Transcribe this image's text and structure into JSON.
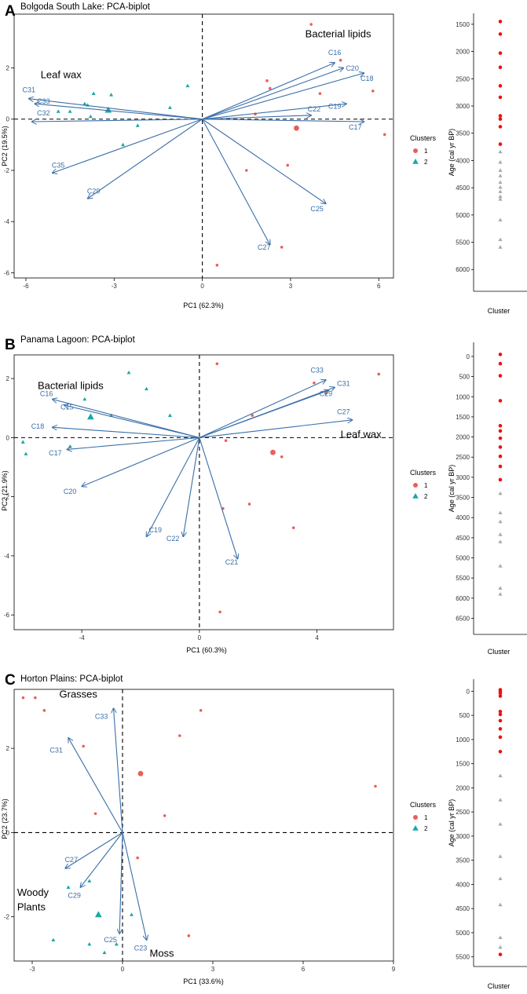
{
  "colors": {
    "arrow": "#3a6fa8",
    "cluster1": "#e8605a",
    "cluster2": "#1aa8a3",
    "age_cluster1": "#ee1111",
    "age_cluster2": "#aaaaaa",
    "axis": "#000000"
  },
  "chart_data": [
    {
      "type": "scatter",
      "panel_letter": "A",
      "title": "Bolgoda South Lake: PCA-biplot",
      "xlabel": "PC1 (62.3%)",
      "ylabel": "PC2 (19.5%)",
      "xlim": [
        -6.4,
        6.5
      ],
      "ylim": [
        -6.2,
        4.1
      ],
      "xticks": [
        -6,
        -3,
        0,
        3,
        6
      ],
      "xtick_labels": [
        "-6",
        "-3",
        "0",
        "3",
        "6"
      ],
      "yticks": [
        -6,
        -4,
        -2,
        0,
        2
      ],
      "ytick_labels": [
        "-6",
        "-4",
        "-2",
        "0",
        "2"
      ],
      "legend_title": "Clusters",
      "legend_entries": [
        "1",
        "2"
      ],
      "annotations": [
        {
          "text": "Leaf wax",
          "x": -5.5,
          "y": 1.6
        },
        {
          "text": "Bacterial lipids",
          "x": 3.5,
          "y": 3.2
        }
      ],
      "loadings": [
        {
          "label": "C16",
          "x": 4.5,
          "y": 2.2,
          "lx": 4.5,
          "ly": 2.5
        },
        {
          "label": "C20",
          "x": 4.8,
          "y": 2.0,
          "lx": 5.1,
          "ly": 1.9
        },
        {
          "label": "C18",
          "x": 5.5,
          "y": 1.8,
          "lx": 5.6,
          "ly": 1.5
        },
        {
          "label": "C19",
          "x": 4.9,
          "y": 0.6,
          "lx": 4.5,
          "ly": 0.4
        },
        {
          "label": "C22",
          "x": 3.7,
          "y": 0.15,
          "lx": 3.8,
          "ly": 0.3
        },
        {
          "label": "C17",
          "x": 5.5,
          "y": -0.1,
          "lx": 5.2,
          "ly": -0.4
        },
        {
          "label": "C25",
          "x": 4.2,
          "y": -3.3,
          "lx": 3.9,
          "ly": -3.6
        },
        {
          "label": "C27",
          "x": 2.3,
          "y": -4.9,
          "lx": 2.1,
          "ly": -5.1
        },
        {
          "label": "C29",
          "x": -3.9,
          "y": -3.1,
          "lx": -3.7,
          "ly": -2.9
        },
        {
          "label": "C35",
          "x": -5.1,
          "y": -2.1,
          "lx": -4.9,
          "ly": -1.9
        },
        {
          "label": "C31",
          "x": -5.9,
          "y": 0.8,
          "lx": -5.9,
          "ly": 1.05
        },
        {
          "label": "C33",
          "x": -5.7,
          "y": 0.6,
          "lx": -5.4,
          "ly": 0.6
        },
        {
          "label": "C32",
          "x": -5.8,
          "y": -0.1,
          "lx": -5.4,
          "ly": 0.15
        }
      ],
      "points": [
        {
          "x": 3.7,
          "y": 3.7,
          "cluster": 1
        },
        {
          "x": 4.7,
          "y": 2.3,
          "cluster": 1
        },
        {
          "x": 2.2,
          "y": 1.5,
          "cluster": 1
        },
        {
          "x": 2.3,
          "y": 1.2,
          "cluster": 1
        },
        {
          "x": 4.0,
          "y": 1.0,
          "cluster": 1
        },
        {
          "x": 5.8,
          "y": 1.1,
          "cluster": 1
        },
        {
          "x": 1.8,
          "y": 0.2,
          "cluster": 1
        },
        {
          "x": 6.2,
          "y": -0.6,
          "cluster": 1
        },
        {
          "x": 1.5,
          "y": -2.0,
          "cluster": 1
        },
        {
          "x": 2.9,
          "y": -1.8,
          "cluster": 1
        },
        {
          "x": 2.7,
          "y": -5.0,
          "cluster": 1
        },
        {
          "x": 0.5,
          "y": -5.7,
          "cluster": 1
        },
        {
          "x": -0.5,
          "y": 1.3,
          "cluster": 2
        },
        {
          "x": -1.1,
          "y": 0.45,
          "cluster": 2
        },
        {
          "x": -3.7,
          "y": 1.0,
          "cluster": 2
        },
        {
          "x": -3.1,
          "y": 0.95,
          "cluster": 2
        },
        {
          "x": -4.0,
          "y": 0.6,
          "cluster": 2
        },
        {
          "x": -4.5,
          "y": 0.3,
          "cluster": 2
        },
        {
          "x": -4.9,
          "y": 0.3,
          "cluster": 2
        },
        {
          "x": -3.8,
          "y": 0.1,
          "cluster": 2
        },
        {
          "x": -2.2,
          "y": -0.25,
          "cluster": 2
        },
        {
          "x": -2.7,
          "y": -1.0,
          "cluster": 2
        },
        {
          "x": -3.9,
          "y": 0.55,
          "cluster": 2
        }
      ],
      "centroids": [
        {
          "x": 3.2,
          "y": -0.35,
          "cluster": 1
        },
        {
          "x": -3.2,
          "y": 0.35,
          "cluster": 2
        }
      ],
      "age_axis": {
        "ylabel": "Age (cal yr BP)",
        "xlabel": "Cluster",
        "ylim": [
          1300,
          6400
        ],
        "ticks": [
          1500,
          2000,
          2500,
          3000,
          3500,
          4000,
          4500,
          5000,
          5500,
          6000
        ],
        "tick_labels": [
          "1500",
          "2000",
          "2500",
          "3000",
          "3500",
          "4000",
          "4500",
          "5000",
          "5500",
          "6000"
        ],
        "cluster1_ages": [
          1450,
          1680,
          2030,
          2290,
          2630,
          2840,
          3180,
          3240,
          3380,
          3700
        ],
        "cluster2_ages": [
          3840,
          4030,
          4180,
          4280,
          4400,
          4490,
          4570,
          4660,
          4710,
          5090,
          5450,
          5590
        ]
      }
    },
    {
      "type": "scatter",
      "panel_letter": "B",
      "title": "Panama Lagoon: PCA-biplot",
      "xlabel": "PC1 (60.3%)",
      "ylabel": "PC2 (21.9%)",
      "xlim": [
        -6.3,
        6.6
      ],
      "ylim": [
        -6.5,
        2.8
      ],
      "xticks": [
        -4,
        0,
        4
      ],
      "xtick_labels": [
        "-4",
        "0",
        "4"
      ],
      "yticks": [
        -6,
        -4,
        -2,
        0,
        2
      ],
      "ytick_labels": [
        "-6",
        "-4",
        "-2",
        "0",
        "2"
      ],
      "legend_title": "Clusters",
      "legend_entries": [
        "1",
        "2"
      ],
      "annotations": [
        {
          "text": "Bacterial lipids",
          "x": -5.5,
          "y": 1.65
        },
        {
          "text": "Leaf wax",
          "x": 4.8,
          "y": 0.0
        }
      ],
      "loadings": [
        {
          "label": "C33",
          "x": 4.3,
          "y": 1.95,
          "lx": 4.0,
          "ly": 2.2
        },
        {
          "label": "C31",
          "x": 4.6,
          "y": 1.7,
          "lx": 4.9,
          "ly": 1.75
        },
        {
          "label": "C29",
          "x": 4.4,
          "y": 1.6,
          "lx": 4.3,
          "ly": 1.4
        },
        {
          "label": "C27",
          "x": 5.2,
          "y": 0.6,
          "lx": 4.9,
          "ly": 0.8
        },
        {
          "label": "C16",
          "x": -5.0,
          "y": 1.3,
          "lx": -5.2,
          "ly": 1.4
        },
        {
          "label": "C15",
          "x": -4.6,
          "y": 1.1,
          "lx": -4.5,
          "ly": 0.95
        },
        {
          "label": "C18",
          "x": -5.0,
          "y": 0.35,
          "lx": -5.5,
          "ly": 0.3
        },
        {
          "label": "C17",
          "x": -4.5,
          "y": -0.4,
          "lx": -4.9,
          "ly": -0.6
        },
        {
          "label": "C20",
          "x": -4.0,
          "y": -1.65,
          "lx": -4.4,
          "ly": -1.9
        },
        {
          "label": "C19",
          "x": -1.8,
          "y": -3.35,
          "lx": -1.5,
          "ly": -3.2
        },
        {
          "label": "C22",
          "x": -0.55,
          "y": -3.35,
          "lx": -0.9,
          "ly": -3.5
        },
        {
          "label": "C21",
          "x": 1.3,
          "y": -4.1,
          "lx": 1.1,
          "ly": -4.3
        }
      ],
      "points": [
        {
          "x": 0.6,
          "y": 2.5,
          "cluster": 1
        },
        {
          "x": 6.1,
          "y": 2.15,
          "cluster": 1
        },
        {
          "x": 3.9,
          "y": 1.85,
          "cluster": 1
        },
        {
          "x": 4.3,
          "y": 1.5,
          "cluster": 1
        },
        {
          "x": 1.8,
          "y": 0.75,
          "cluster": 1
        },
        {
          "x": 0.9,
          "y": -0.1,
          "cluster": 1
        },
        {
          "x": 2.8,
          "y": -0.65,
          "cluster": 1
        },
        {
          "x": 0.8,
          "y": -2.4,
          "cluster": 1
        },
        {
          "x": 1.7,
          "y": -2.25,
          "cluster": 1
        },
        {
          "x": 3.2,
          "y": -3.05,
          "cluster": 1
        },
        {
          "x": 0.7,
          "y": -5.9,
          "cluster": 1
        },
        {
          "x": -2.4,
          "y": 2.2,
          "cluster": 2
        },
        {
          "x": -1.8,
          "y": 1.65,
          "cluster": 2
        },
        {
          "x": -3.9,
          "y": 1.3,
          "cluster": 2
        },
        {
          "x": -3.0,
          "y": 0.75,
          "cluster": 2
        },
        {
          "x": -1.0,
          "y": 0.75,
          "cluster": 2
        },
        {
          "x": -6.0,
          "y": -0.15,
          "cluster": 2
        },
        {
          "x": -5.9,
          "y": -0.55,
          "cluster": 2
        },
        {
          "x": -4.4,
          "y": -0.3,
          "cluster": 2
        }
      ],
      "centroids": [
        {
          "x": 2.5,
          "y": -0.5,
          "cluster": 1
        },
        {
          "x": -3.7,
          "y": 0.7,
          "cluster": 2
        }
      ],
      "age_axis": {
        "ylabel": "Age (cal yr BP)",
        "xlabel": "Cluster",
        "ylim": [
          -350,
          6900
        ],
        "ticks": [
          0,
          500,
          1000,
          1500,
          2000,
          2500,
          3000,
          3500,
          4000,
          4500,
          5000,
          5500,
          6000,
          6500
        ],
        "tick_labels": [
          "0",
          "500",
          "1000",
          "1500",
          "2000",
          "2500",
          "3000",
          "3500",
          "4000",
          "4500",
          "5000",
          "5500",
          "6000",
          "6500"
        ],
        "cluster1_ages": [
          -50,
          180,
          480,
          1100,
          1720,
          1850,
          2030,
          2250,
          2480,
          2730,
          3060
        ],
        "cluster2_ages": [
          3400,
          3880,
          4100,
          4420,
          4600,
          5200,
          5750,
          5900
        ]
      }
    },
    {
      "type": "scatter",
      "panel_letter": "C",
      "title": "Horton Plains: PCA-biplot",
      "xlabel": "PC1 (33.6%)",
      "ylabel": "PC2 (23.7%)",
      "xlim": [
        -3.6,
        9.0
      ],
      "ylim": [
        -3.05,
        3.4
      ],
      "xticks": [
        -3,
        0,
        3,
        6,
        9
      ],
      "xtick_labels": [
        "-3",
        "0",
        "3",
        "6",
        "9"
      ],
      "yticks": [
        -2,
        0,
        2
      ],
      "ytick_labels": [
        "-2",
        "0",
        "2"
      ],
      "legend_title": "Clusters",
      "legend_entries": [
        "1",
        "2"
      ],
      "annotations": [
        {
          "text": "Grasses",
          "x": -2.1,
          "y": 3.2
        },
        {
          "text": "Woody",
          "x": -3.5,
          "y": -1.5
        },
        {
          "text": "Plants",
          "x": -3.5,
          "y": -1.85
        },
        {
          "text": "Moss",
          "x": 0.9,
          "y": -2.95
        }
      ],
      "loadings": [
        {
          "label": "C33",
          "x": -0.3,
          "y": 2.95,
          "lx": -0.7,
          "ly": 2.7
        },
        {
          "label": "C31",
          "x": -1.8,
          "y": 2.25,
          "lx": -2.2,
          "ly": 1.9
        },
        {
          "label": "C27",
          "x": -1.9,
          "y": -0.85,
          "lx": -1.7,
          "ly": -0.7
        },
        {
          "label": "C29",
          "x": -1.4,
          "y": -1.3,
          "lx": -1.6,
          "ly": -1.55
        },
        {
          "label": "C25",
          "x": -0.1,
          "y": -2.4,
          "lx": -0.4,
          "ly": -2.6
        },
        {
          "label": "C23",
          "x": 0.8,
          "y": -2.55,
          "lx": 0.6,
          "ly": -2.8
        }
      ],
      "points": [
        {
          "x": -3.3,
          "y": 3.2,
          "cluster": 1
        },
        {
          "x": -2.9,
          "y": 3.2,
          "cluster": 1
        },
        {
          "x": -2.6,
          "y": 2.9,
          "cluster": 1
        },
        {
          "x": 2.6,
          "y": 2.9,
          "cluster": 1
        },
        {
          "x": 1.9,
          "y": 2.3,
          "cluster": 1
        },
        {
          "x": -1.3,
          "y": 2.05,
          "cluster": 1
        },
        {
          "x": 8.4,
          "y": 1.1,
          "cluster": 1
        },
        {
          "x": 1.4,
          "y": 0.4,
          "cluster": 1
        },
        {
          "x": -0.9,
          "y": 0.45,
          "cluster": 1
        },
        {
          "x": 0.5,
          "y": -0.6,
          "cluster": 1
        },
        {
          "x": 2.2,
          "y": -2.45,
          "cluster": 1
        },
        {
          "x": -1.1,
          "y": -1.15,
          "cluster": 2
        },
        {
          "x": -1.8,
          "y": -1.3,
          "cluster": 2
        },
        {
          "x": 0.3,
          "y": -1.95,
          "cluster": 2
        },
        {
          "x": -2.3,
          "y": -2.55,
          "cluster": 2
        },
        {
          "x": -1.1,
          "y": -2.65,
          "cluster": 2
        },
        {
          "x": -0.6,
          "y": -2.85,
          "cluster": 2
        },
        {
          "x": -0.2,
          "y": -2.65,
          "cluster": 2
        }
      ],
      "centroids": [
        {
          "x": 0.6,
          "y": 1.4,
          "cluster": 1
        },
        {
          "x": -0.8,
          "y": -1.95,
          "cluster": 2
        }
      ],
      "age_axis": {
        "ylabel": "Age (cal yr BP)",
        "xlabel": "Cluster",
        "ylim": [
          -250,
          5700
        ],
        "ticks": [
          0,
          500,
          1000,
          1500,
          2000,
          2500,
          3000,
          3500,
          4000,
          4500,
          5000,
          5500
        ],
        "tick_labels": [
          "0",
          "500",
          "1000",
          "1500",
          "2000",
          "2500",
          "3000",
          "3500",
          "4000",
          "4500",
          "5000",
          "5500"
        ],
        "cluster1_ages": [
          -30,
          0,
          40,
          100,
          420,
          480,
          610,
          780,
          950,
          1250,
          5450
        ],
        "cluster2_ages": [
          1750,
          2250,
          2750,
          3420,
          3880,
          4420,
          5100,
          5300
        ]
      }
    }
  ]
}
